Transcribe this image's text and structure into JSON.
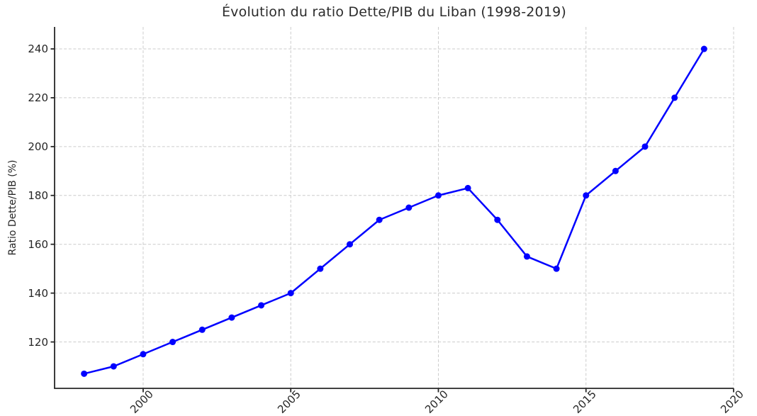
{
  "chart_data": {
    "type": "line",
    "title": "Évolution du ratio Dette/PIB du Liban (1998-2019)",
    "xlabel": "",
    "ylabel": "Ratio Dette/PIB (%)",
    "x": [
      1998,
      1999,
      2000,
      2001,
      2002,
      2003,
      2004,
      2005,
      2006,
      2007,
      2008,
      2009,
      2010,
      2011,
      2012,
      2013,
      2014,
      2015,
      2016,
      2017,
      2018,
      2019
    ],
    "series": [
      {
        "name": "Ratio Dette/PIB (%)",
        "values": [
          107,
          110,
          115,
          120,
          125,
          130,
          135,
          140,
          150,
          160,
          170,
          175,
          180,
          183,
          170,
          155,
          150,
          180,
          190,
          200,
          220,
          240
        ]
      }
    ],
    "x_ticks": [
      2000,
      2005,
      2010,
      2015,
      2020
    ],
    "y_ticks": [
      120,
      140,
      160,
      180,
      200,
      220,
      240
    ],
    "xlim": [
      1997,
      2020
    ],
    "ylim": [
      101,
      249
    ],
    "grid": true,
    "grid_style": "dashed",
    "x_tick_rotation_deg": 45,
    "legend": "none",
    "marker": "circle",
    "colors": {
      "line": "#0000ff",
      "grid": "#cccccc",
      "axis": "#262626",
      "text": "#262626",
      "title": "#2b2b2b",
      "background": "#ffffff"
    }
  }
}
